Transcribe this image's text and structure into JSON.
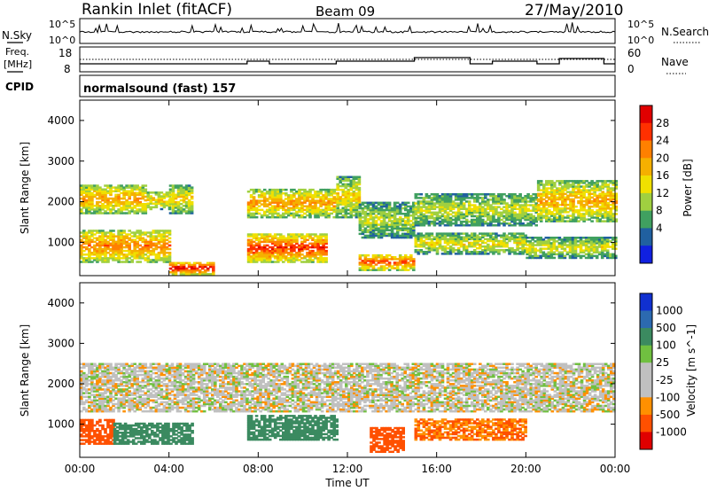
{
  "header": {
    "site": "Rankin Inlet (fitACF)",
    "beam": "Beam 09",
    "date": "27/May/2010"
  },
  "noise_panel": {
    "left_label": "N.Sky",
    "right_label": "N.Search",
    "ytick_top": "10^5",
    "ytick_bottom": "10^0"
  },
  "freq_panel": {
    "left_label_1": "Freq.",
    "left_label_2": "[MHz]",
    "right_label": "Nave",
    "left_ticks": [
      "18",
      "8"
    ],
    "right_ticks": [
      "60",
      "0"
    ]
  },
  "cpid": {
    "label": "CPID",
    "value": "normalsound (fast) 157"
  },
  "axes": {
    "xlabel": "Time UT",
    "ylabel": "Slant Range [km]",
    "xticks": [
      "00:00",
      "04:00",
      "08:00",
      "12:00",
      "16:00",
      "20:00",
      "00:00"
    ],
    "yticks": [
      "1000",
      "2000",
      "3000",
      "4000"
    ]
  },
  "power_colorbar": {
    "label": "Power [dB]",
    "ticks": [
      "28",
      "24",
      "20",
      "16",
      "12",
      "8",
      "4"
    ],
    "colors": [
      "#e00000",
      "#ff3000",
      "#ff8000",
      "#f5b000",
      "#f0e000",
      "#a0d040",
      "#40a060",
      "#2060a0",
      "#1020e0"
    ]
  },
  "velocity_colorbar": {
    "label": "Velocity [m s^-1]",
    "ticks": [
      "1000",
      "500",
      "100",
      "25",
      "-25",
      "-100",
      "-500",
      "-1000"
    ],
    "colors": [
      "#1030d0",
      "#2c6ab0",
      "#3b8a60",
      "#70c040",
      "#c0c0c0",
      "#c0c0c0",
      "#ff9000",
      "#ff5000",
      "#e00000"
    ]
  },
  "chart_data": {
    "type": "heatmap",
    "title": "Rankin Inlet (fitACF)",
    "xlabel": "Time UT",
    "ylabel": "Slant Range [km]",
    "x_range": [
      "00:00",
      "24:00"
    ],
    "y_range": [
      180,
      4500
    ],
    "power_range_db": [
      0,
      30
    ],
    "velocity_range": [
      -1000,
      1000
    ],
    "nave_range": [
      0,
      60
    ],
    "freq_range_mhz": [
      8,
      18
    ],
    "noise_range": [
      "10^0",
      "10^5"
    ],
    "power_bands": [
      {
        "t": [
          0,
          3
        ],
        "range_km": [
          1700,
          2400
        ],
        "db": 20
      },
      {
        "t": [
          3,
          4
        ],
        "range_km": [
          1800,
          2250
        ],
        "db": 17
      },
      {
        "t": [
          4,
          5
        ],
        "range_km": [
          1700,
          2400
        ],
        "db": 16
      },
      {
        "t": [
          7.5,
          11.5
        ],
        "range_km": [
          1600,
          2300
        ],
        "db": 20
      },
      {
        "t": [
          11.5,
          12.5
        ],
        "range_km": [
          1600,
          2600
        ],
        "db": 16
      },
      {
        "t": [
          12.5,
          15
        ],
        "range_km": [
          1100,
          2000
        ],
        "db": 12
      },
      {
        "t": [
          15,
          20.5
        ],
        "range_km": [
          1400,
          2200
        ],
        "db": 13
      },
      {
        "t": [
          20.5,
          24
        ],
        "range_km": [
          1500,
          2500
        ],
        "db": 19
      },
      {
        "t": [
          0,
          4
        ],
        "range_km": [
          500,
          1300
        ],
        "db": 22
      },
      {
        "t": [
          4,
          6
        ],
        "range_km": [
          200,
          500
        ],
        "db": 30
      },
      {
        "t": [
          7.5,
          11
        ],
        "range_km": [
          500,
          1200
        ],
        "db": 26
      },
      {
        "t": [
          12.5,
          15
        ],
        "range_km": [
          300,
          700
        ],
        "db": 24
      },
      {
        "t": [
          15,
          20
        ],
        "range_km": [
          700,
          1200
        ],
        "db": 15
      },
      {
        "t": [
          20,
          24
        ],
        "range_km": [
          600,
          1100
        ],
        "db": 14
      }
    ],
    "velocity_bands": [
      {
        "t": [
          0,
          24
        ],
        "range_km": [
          1300,
          2500
        ],
        "v": 0
      },
      {
        "t": [
          0,
          1.5
        ],
        "range_km": [
          500,
          1100
        ],
        "v": -150
      },
      {
        "t": [
          1.5,
          5
        ],
        "range_km": [
          500,
          1000
        ],
        "v": 300
      },
      {
        "t": [
          7.5,
          11.5
        ],
        "range_km": [
          600,
          1200
        ],
        "v": 300
      },
      {
        "t": [
          13,
          14.5
        ],
        "range_km": [
          300,
          900
        ],
        "v": -200
      },
      {
        "t": [
          15,
          20
        ],
        "range_km": [
          600,
          1100
        ],
        "v": -100
      }
    ]
  }
}
